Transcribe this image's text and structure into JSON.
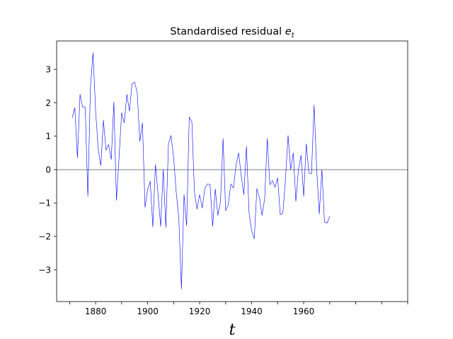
{
  "chart_data": {
    "type": "line",
    "title": {
      "main": "Standardised residual ",
      "var": "e",
      "sub": "t"
    },
    "xlabel": "t",
    "ylabel": "",
    "xlim": [
      1865,
      2000
    ],
    "ylim": [
      -3.95,
      3.85
    ],
    "x_ticks": [
      1880,
      1900,
      1920,
      1940,
      1960
    ],
    "x_minor_ticks": [
      1870,
      1890,
      1910,
      1930,
      1950,
      1970,
      1980,
      1990,
      2000
    ],
    "y_ticks": [
      -3,
      -2,
      -1,
      0,
      1,
      2,
      3
    ],
    "y_tick_labels": [
      "−3",
      "−2",
      "−1",
      "0",
      "1",
      "2",
      "3"
    ],
    "grid": false,
    "reference_line_y": 0,
    "series": [
      {
        "color": "#0000ff",
        "x": [
          1871,
          1872,
          1873,
          1874,
          1875,
          1876,
          1877,
          1878,
          1879,
          1880,
          1881,
          1882,
          1883,
          1884,
          1885,
          1886,
          1887,
          1888,
          1889,
          1890,
          1891,
          1892,
          1893,
          1894,
          1895,
          1896,
          1897,
          1898,
          1899,
          1900,
          1901,
          1902,
          1903,
          1904,
          1905,
          1906,
          1907,
          1908,
          1909,
          1910,
          1911,
          1912,
          1913,
          1914,
          1915,
          1916,
          1917,
          1918,
          1919,
          1920,
          1921,
          1922,
          1923,
          1924,
          1925,
          1926,
          1927,
          1928,
          1929,
          1930,
          1931,
          1932,
          1933,
          1934,
          1935,
          1936,
          1937,
          1938,
          1939,
          1940,
          1941,
          1942,
          1943,
          1944,
          1945,
          1946,
          1947,
          1948,
          1949,
          1950,
          1951,
          1952,
          1953,
          1954,
          1955,
          1956,
          1957,
          1958,
          1959,
          1960,
          1961,
          1962,
          1963,
          1964,
          1965,
          1966,
          1967,
          1968,
          1969,
          1970
        ],
        "y": [
          1.55,
          1.85,
          0.35,
          2.25,
          1.87,
          1.87,
          -0.8,
          2.45,
          3.5,
          1.75,
          0.6,
          0.12,
          1.48,
          0.58,
          0.75,
          0.3,
          2.02,
          -0.92,
          0.35,
          1.7,
          1.4,
          2.25,
          1.75,
          2.57,
          2.62,
          2.3,
          0.85,
          1.4,
          -1.13,
          -0.6,
          -0.35,
          -1.72,
          0.15,
          -0.73,
          -1.7,
          0.0,
          -1.73,
          0.77,
          1.02,
          0.35,
          -0.68,
          -1.47,
          -3.57,
          -0.75,
          -1.68,
          1.57,
          1.43,
          -0.67,
          -1.18,
          -0.75,
          -1.15,
          -0.55,
          -0.43,
          -0.45,
          -1.7,
          -0.58,
          -1.37,
          -0.97,
          0.93,
          -1.23,
          -1.05,
          -0.43,
          -0.55,
          0.15,
          0.5,
          -0.2,
          -0.75,
          0.7,
          -1.3,
          -1.83,
          -2.07,
          -0.57,
          -0.85,
          -1.37,
          -0.87,
          0.93,
          -0.45,
          -0.33,
          -0.53,
          -0.25,
          -1.35,
          -1.3,
          -0.3,
          1.02,
          0.0,
          0.5,
          -0.95,
          -0.0,
          0.43,
          -0.8,
          0.77,
          -0.1,
          -0.13,
          1.93,
          0.02,
          -1.33,
          0.0,
          -1.57,
          -1.6,
          -1.4
        ]
      }
    ]
  }
}
